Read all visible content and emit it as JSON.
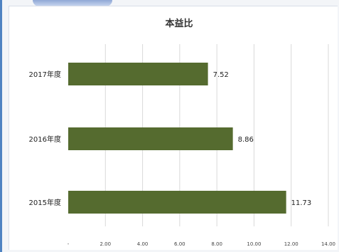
{
  "chart_data": {
    "type": "bar",
    "orientation": "horizontal",
    "title": "本益比",
    "categories": [
      "2017年度",
      "2016年度",
      "2015年度"
    ],
    "values": [
      7.52,
      8.86,
      11.73
    ],
    "value_labels": [
      "7.52",
      "8.86",
      "11.73"
    ],
    "xlim": [
      0,
      14
    ],
    "x_ticks": [
      0,
      2,
      4,
      6,
      8,
      10,
      12,
      14
    ],
    "x_tick_labels": [
      "-",
      "2.00",
      "4.00",
      "6.00",
      "8.00",
      "10.00",
      "12.00",
      "14.00"
    ],
    "grid": true,
    "legend": "none",
    "bar_color": "#556b2f",
    "grid_color": "#d9d9d9"
  }
}
